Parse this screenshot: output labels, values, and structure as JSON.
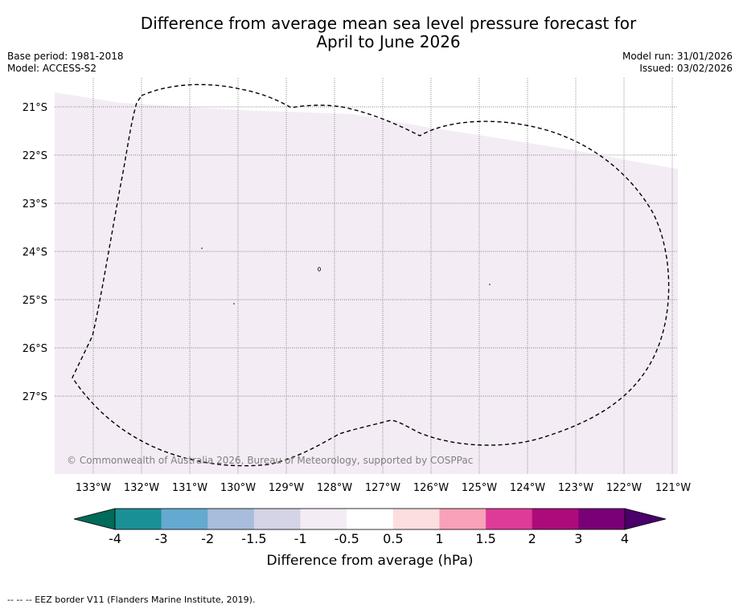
{
  "header": {
    "title_line1": "Difference from average mean sea level pressure forecast for",
    "title_line2": "April to June 2026",
    "base_period": "Base period: 1981-2018",
    "model": "Model: ACCESS-S2",
    "model_run": "Model run: 31/01/2026",
    "issued": "Issued: 03/02/2026"
  },
  "map": {
    "lat_labels": [
      "21°S",
      "22°S",
      "23°S",
      "24°S",
      "25°S",
      "26°S",
      "27°S"
    ],
    "lon_labels": [
      "133°W",
      "132°W",
      "131°W",
      "130°W",
      "129°W",
      "128°W",
      "127°W",
      "126°W",
      "125°W",
      "124°W",
      "123°W",
      "122°W",
      "121°W"
    ],
    "copyright": "© Commonwealth of Australia 2026, Bureau of Meteorology, supported by COSPPac",
    "fill_color": "#f4ecf5",
    "eez_border_label": "EEZ border"
  },
  "colorbar": {
    "ticks": [
      "-4",
      "-3",
      "-2",
      "-1.5",
      "-1",
      "-0.5",
      "0.5",
      "1",
      "1.5",
      "2",
      "3",
      "4"
    ],
    "colors": [
      "#1a9096",
      "#64a9d0",
      "#a8bcdb",
      "#d4d4e6",
      "#f4ecf5",
      "#ffffff",
      "#fddedf",
      "#f8a1b8",
      "#de3b98",
      "#ad0a7b",
      "#790077"
    ],
    "under_color": "#006b5a",
    "over_color": "#49006a",
    "label": "Difference from average (hPa)"
  },
  "footer": {
    "legend_text": "--  --  -- EEZ border V11 (Flanders Marine Institute, 2019)."
  }
}
